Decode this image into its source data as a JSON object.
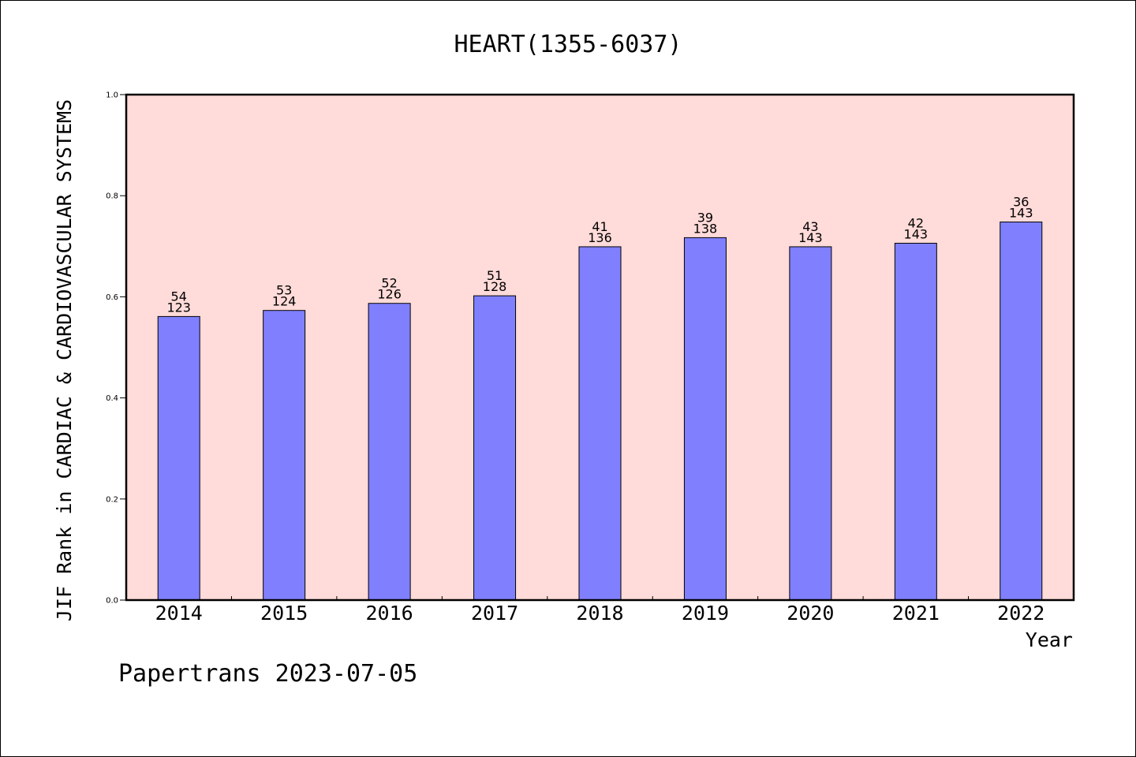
{
  "chart_data": {
    "type": "bar",
    "title": "HEART(1355-6037)",
    "xlabel": "Year",
    "ylabel": "JIF Rank in CARDIAC & CARDIOVASCULAR SYSTEMS",
    "categories": [
      "2014",
      "2015",
      "2016",
      "2017",
      "2018",
      "2019",
      "2020",
      "2021",
      "2022"
    ],
    "values": [
      0.561,
      0.573,
      0.587,
      0.602,
      0.699,
      0.717,
      0.699,
      0.706,
      0.748
    ],
    "rank": [
      "54",
      "53",
      "52",
      "51",
      "41",
      "39",
      "43",
      "42",
      "36"
    ],
    "total": [
      "123",
      "124",
      "126",
      "128",
      "136",
      "138",
      "143",
      "143",
      "143"
    ],
    "ylim": [
      0,
      1.0
    ],
    "yticks": [
      "0.0",
      "0.2",
      "0.4",
      "0.6",
      "0.8",
      "1.0"
    ],
    "grid": false,
    "plot_background": "#ffdbd9",
    "bar_color": "#8080ff"
  },
  "footer": "Papertrans 2023-07-05"
}
